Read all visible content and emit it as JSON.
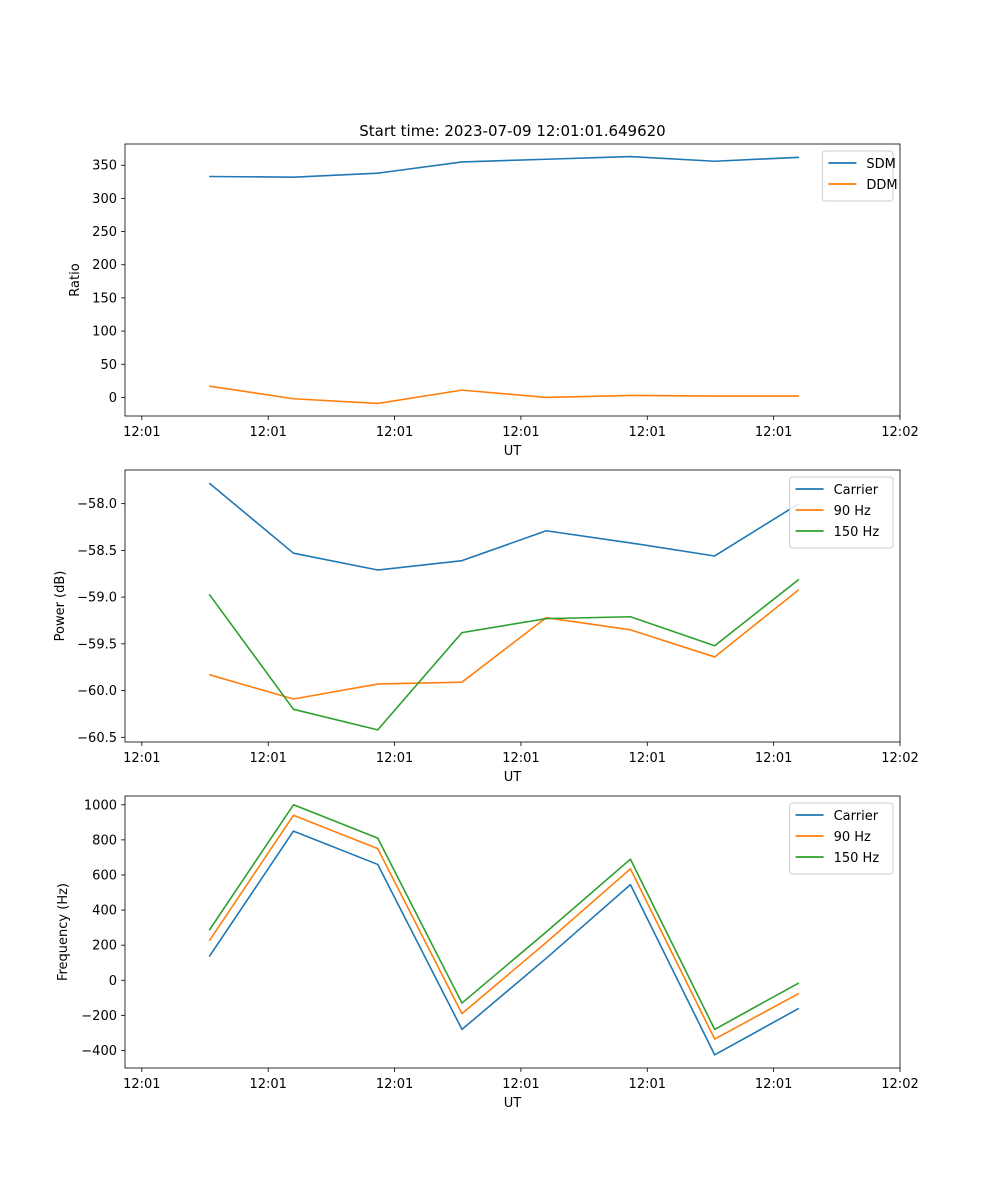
{
  "figure_title": "Start time: 2023-07-09 12:01:01.649620",
  "colors": {
    "blue": "#1f77b4",
    "orange": "#ff7f0e",
    "green": "#2ca02c"
  },
  "chart_data": [
    {
      "type": "line",
      "title": "Start time: 2023-07-09 12:01:01.649620",
      "xlabel": "UT",
      "ylabel": "Ratio",
      "x": [
        1,
        2,
        3,
        4,
        5,
        6,
        7,
        8
      ],
      "x_ticks": [
        0.2,
        1.7,
        3.2,
        4.7,
        6.2,
        7.7,
        9.2
      ],
      "x_tick_labels": [
        "12:01",
        "12:01",
        "12:01",
        "12:01",
        "12:01",
        "12:01",
        "12:02"
      ],
      "xlim": [
        0,
        9.2
      ],
      "ylim": [
        -28,
        382
      ],
      "y_ticks": [
        0,
        50,
        100,
        150,
        200,
        250,
        300,
        350
      ],
      "y_tick_labels": [
        "0",
        "50",
        "100",
        "150",
        "200",
        "250",
        "300",
        "350"
      ],
      "legend": "upper-right",
      "series": [
        {
          "name": "SDM",
          "color": "#1f77b4",
          "values": [
            333,
            332,
            338,
            355,
            359,
            363,
            356,
            362
          ]
        },
        {
          "name": "DDM",
          "color": "#ff7f0e",
          "values": [
            17,
            -2,
            -9,
            11,
            0,
            3,
            2,
            2
          ]
        }
      ]
    },
    {
      "type": "line",
      "title": "",
      "xlabel": "UT",
      "ylabel": "Power (dB)",
      "x": [
        1,
        2,
        3,
        4,
        5,
        6,
        7,
        8
      ],
      "x_ticks": [
        0.2,
        1.7,
        3.2,
        4.7,
        6.2,
        7.7,
        9.2
      ],
      "x_tick_labels": [
        "12:01",
        "12:01",
        "12:01",
        "12:01",
        "12:01",
        "12:01",
        "12:02"
      ],
      "xlim": [
        0,
        9.2
      ],
      "ylim": [
        -60.55,
        -57.64
      ],
      "y_ticks": [
        -60.5,
        -60.0,
        -59.5,
        -59.0,
        -58.5,
        -58.0
      ],
      "y_tick_labels": [
        "−60.5",
        "−60.0",
        "−59.5",
        "−59.0",
        "−58.5",
        "−58.0"
      ],
      "legend": "upper-right",
      "series": [
        {
          "name": "Carrier",
          "color": "#1f77b4",
          "values": [
            -57.78,
            -58.53,
            -58.71,
            -58.61,
            -58.29,
            -58.42,
            -58.56,
            -58.0
          ]
        },
        {
          "name": "90 Hz",
          "color": "#ff7f0e",
          "values": [
            -59.83,
            -60.09,
            -59.93,
            -59.91,
            -59.22,
            -59.35,
            -59.64,
            -58.92
          ]
        },
        {
          "name": "150 Hz",
          "color": "#2ca02c",
          "values": [
            -58.97,
            -60.2,
            -60.42,
            -59.38,
            -59.23,
            -59.21,
            -59.52,
            -58.81
          ]
        }
      ]
    },
    {
      "type": "line",
      "title": "",
      "xlabel": "UT",
      "ylabel": "Frequency (Hz)",
      "x": [
        1,
        2,
        3,
        4,
        5,
        6,
        7,
        8
      ],
      "x_ticks": [
        0.2,
        1.7,
        3.2,
        4.7,
        6.2,
        7.7,
        9.2
      ],
      "x_tick_labels": [
        "12:01",
        "12:01",
        "12:01",
        "12:01",
        "12:01",
        "12:01",
        "12:02"
      ],
      "xlim": [
        0,
        9.2
      ],
      "ylim": [
        -500,
        1050
      ],
      "y_ticks": [
        -400,
        -200,
        0,
        200,
        400,
        600,
        800,
        1000
      ],
      "y_tick_labels": [
        "−400",
        "−200",
        "0",
        "200",
        "400",
        "600",
        "800",
        "1000"
      ],
      "legend": "upper-right",
      "series": [
        {
          "name": "Carrier",
          "color": "#1f77b4",
          "values": [
            135,
            850,
            660,
            -280,
            125,
            545,
            -425,
            -160
          ]
        },
        {
          "name": "90 Hz",
          "color": "#ff7f0e",
          "values": [
            225,
            940,
            750,
            -190,
            215,
            635,
            -335,
            -75
          ]
        },
        {
          "name": "150 Hz",
          "color": "#2ca02c",
          "values": [
            285,
            1000,
            810,
            -130,
            275,
            690,
            -280,
            -15
          ]
        }
      ]
    }
  ]
}
